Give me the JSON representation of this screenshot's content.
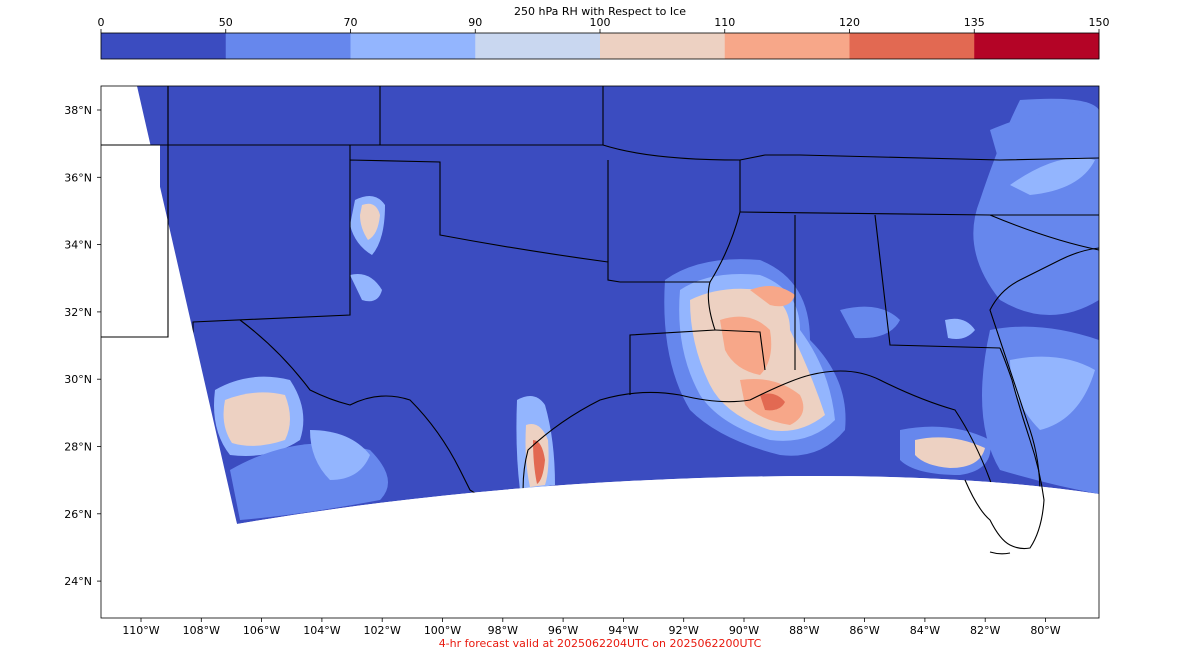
{
  "colorbar": {
    "title": "250 hPa RH with Respect to Ice",
    "bins": [
      {
        "lo": 0,
        "hi": 50,
        "color": "#3b4cc0"
      },
      {
        "lo": 50,
        "hi": 70,
        "color": "#6687ed"
      },
      {
        "lo": 70,
        "hi": 90,
        "color": "#93b5fe"
      },
      {
        "lo": 90,
        "hi": 100,
        "color": "#c9d7f0"
      },
      {
        "lo": 100,
        "hi": 110,
        "color": "#edd1c2"
      },
      {
        "lo": 110,
        "hi": 120,
        "color": "#f7a789"
      },
      {
        "lo": 120,
        "hi": 135,
        "color": "#e26952"
      },
      {
        "lo": 135,
        "hi": 150,
        "color": "#b40426"
      }
    ],
    "tick_labels": [
      "0",
      "50",
      "70",
      "90",
      "100",
      "110",
      "120",
      "135",
      "150"
    ]
  },
  "map": {
    "lat_labels": [
      "38°N",
      "36°N",
      "34°N",
      "32°N",
      "30°N",
      "28°N",
      "26°N",
      "24°N"
    ],
    "lon_labels": [
      "110°W",
      "108°W",
      "106°W",
      "104°W",
      "102°W",
      "100°W",
      "98°W",
      "96°W",
      "94°W",
      "92°W",
      "90°W",
      "88°W",
      "86°W",
      "84°W",
      "82°W",
      "80°W"
    ],
    "background_color": "#3b4cc0",
    "border_color": "#000000"
  },
  "footer": {
    "text": "4-hr forecast valid at 2025062204UTC on 2025062200UTC"
  }
}
